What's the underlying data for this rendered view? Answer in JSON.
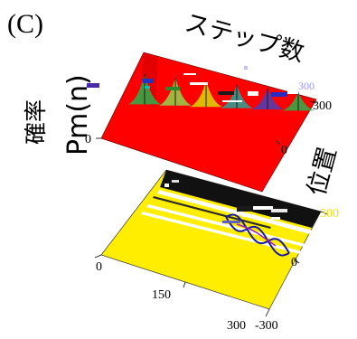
{
  "chart_data": {
    "type": "surface",
    "panel_label": "(C)",
    "axes": {
      "steps": {
        "label": "ステップ数",
        "ticks": [
          "0",
          "150",
          "300"
        ],
        "range": [
          0,
          300
        ]
      },
      "position": {
        "label": "位置",
        "ticks": [
          "300",
          "0",
          "-300"
        ],
        "range": [
          -300,
          300
        ]
      },
      "probability": {
        "label_jp": "確率",
        "label_math": "Pm(n)",
        "tick": "0"
      }
    },
    "top_surface": {
      "kind": "3d-surface",
      "base_color": "#ff0000",
      "ridge_positions": [
        0,
        60,
        120,
        180,
        240,
        300
      ]
    },
    "bottom_projection": {
      "kind": "projected-density",
      "base_color": "#ffee00",
      "band_color": "#111111",
      "wave_color": "#1a1aa0"
    }
  }
}
